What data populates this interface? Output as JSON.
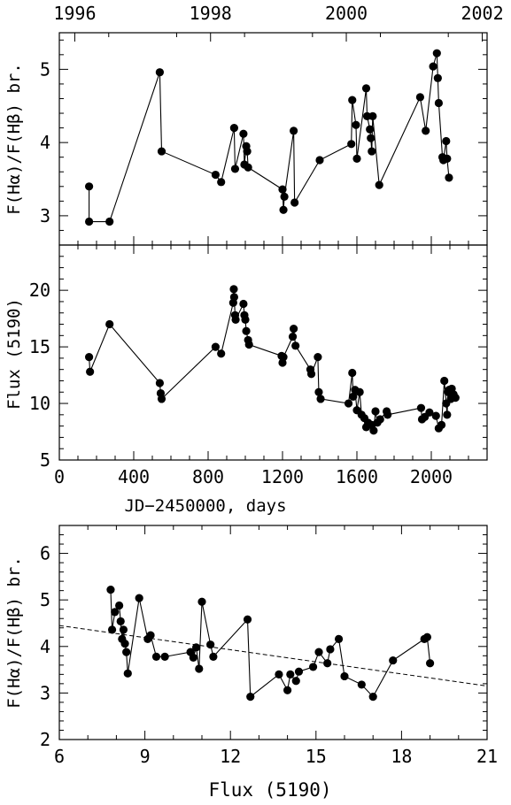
{
  "chart_data": [
    {
      "type": "line",
      "panel": "top",
      "ylabel": "F(Hα)/F(Hβ) br.",
      "top_axis_label": "",
      "top_ticks": [
        "1996",
        "1998",
        "2000",
        "2002"
      ],
      "top_tick_jd": [
        83,
        813,
        1543,
        2274
      ],
      "ylim": [
        2.6,
        5.5
      ],
      "yticks": [
        3,
        4,
        5
      ],
      "xlim": [
        0,
        2300
      ],
      "marker": "filled-circle",
      "connected": true,
      "x": [
        160,
        160,
        270,
        540,
        550,
        840,
        870,
        940,
        945,
        990,
        995,
        1005,
        1010,
        1015,
        1200,
        1205,
        1210,
        1260,
        1265,
        1400,
        1570,
        1575,
        1595,
        1600,
        1650,
        1655,
        1670,
        1675,
        1680,
        1685,
        1720,
        1940,
        1970,
        2010,
        2030,
        2035,
        2040,
        2060,
        2065,
        2080,
        2085,
        2095
      ],
      "y": [
        3.4,
        2.92,
        2.92,
        4.96,
        3.88,
        3.56,
        3.46,
        4.2,
        3.64,
        4.12,
        3.7,
        3.95,
        3.88,
        3.66,
        3.36,
        3.08,
        3.26,
        4.16,
        3.18,
        3.76,
        3.98,
        4.58,
        4.24,
        3.78,
        4.74,
        4.36,
        4.18,
        4.06,
        3.88,
        4.36,
        3.42,
        4.62,
        4.16,
        5.04,
        5.22,
        4.88,
        4.54,
        3.8,
        3.76,
        4.02,
        3.78,
        3.52
      ]
    },
    {
      "type": "line",
      "panel": "middle",
      "xlabel": "JD−2450000, days",
      "ylabel": "Flux (5190)",
      "xlim": [
        0,
        2300
      ],
      "xticks": [
        0,
        400,
        800,
        1200,
        1600,
        2000
      ],
      "ylim": [
        5,
        24
      ],
      "yticks": [
        5,
        10,
        15,
        20
      ],
      "marker": "filled-circle",
      "connected": true,
      "x": [
        160,
        165,
        270,
        540,
        545,
        550,
        840,
        870,
        935,
        938,
        940,
        945,
        948,
        990,
        995,
        1000,
        1005,
        1015,
        1020,
        1195,
        1200,
        1205,
        1255,
        1260,
        1270,
        1350,
        1355,
        1390,
        1395,
        1405,
        1555,
        1575,
        1580,
        1590,
        1600,
        1615,
        1625,
        1640,
        1650,
        1660,
        1680,
        1690,
        1700,
        1710,
        1725,
        1760,
        1765,
        1945,
        1950,
        1965,
        1990,
        2025,
        2040,
        2055,
        2070,
        2080,
        2085,
        2090,
        2095,
        2105,
        2110,
        2120,
        2130
      ],
      "y": [
        14.1,
        12.8,
        17.0,
        11.8,
        10.9,
        10.4,
        15.0,
        14.4,
        18.9,
        20.1,
        19.4,
        17.8,
        17.4,
        18.8,
        17.8,
        17.4,
        16.4,
        15.6,
        15.2,
        14.2,
        13.6,
        14.1,
        15.9,
        16.6,
        15.1,
        13.0,
        12.6,
        14.1,
        11.0,
        10.4,
        10.0,
        12.7,
        10.6,
        11.2,
        9.4,
        11.0,
        9.0,
        8.7,
        7.9,
        8.3,
        8.1,
        7.6,
        9.3,
        8.3,
        8.6,
        9.3,
        9.0,
        9.6,
        8.6,
        8.8,
        9.2,
        8.9,
        7.8,
        8.1,
        12.0,
        10.0,
        9.0,
        11.0,
        11.2,
        10.4,
        11.3,
        10.8,
        10.5
      ]
    },
    {
      "type": "scatter",
      "panel": "bottom",
      "xlabel": "Flux (5190)",
      "ylabel": "F(Hα)/F(Hβ) br.",
      "xlim": [
        6,
        21
      ],
      "xticks": [
        6,
        9,
        12,
        15,
        18,
        21
      ],
      "ylim": [
        2,
        6.6
      ],
      "yticks": [
        2,
        3,
        4,
        5,
        6
      ],
      "marker": "filled-circle",
      "connected": true,
      "regression_line": {
        "style": "dashed",
        "x": [
          6,
          21
        ],
        "y": [
          4.45,
          3.15
        ]
      },
      "x": [
        7.8,
        7.85,
        7.95,
        8.1,
        8.15,
        8.2,
        8.25,
        8.3,
        8.35,
        8.4,
        8.8,
        9.1,
        9.2,
        9.4,
        9.7,
        10.6,
        10.7,
        10.8,
        10.9,
        11.0,
        11.3,
        11.4,
        12.6,
        12.7,
        13.7,
        14.0,
        14.1,
        14.3,
        14.4,
        14.9,
        15.1,
        15.4,
        15.5,
        15.8,
        16.0,
        16.6,
        17.0,
        17.7,
        18.8,
        18.9,
        19.0
      ],
      "y": [
        5.22,
        4.36,
        4.74,
        4.88,
        4.54,
        4.16,
        4.36,
        4.06,
        3.88,
        3.42,
        5.04,
        4.16,
        4.24,
        3.78,
        3.78,
        3.88,
        3.76,
        3.98,
        3.52,
        4.96,
        4.04,
        3.78,
        4.58,
        2.92,
        3.4,
        3.06,
        3.4,
        3.26,
        3.46,
        3.56,
        3.88,
        3.64,
        3.94,
        4.16,
        3.36,
        3.18,
        2.92,
        3.7,
        4.16,
        4.2,
        3.64
      ]
    }
  ]
}
